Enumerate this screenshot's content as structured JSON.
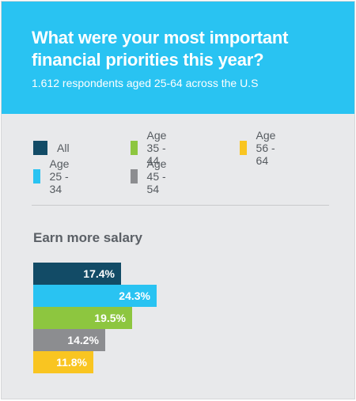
{
  "header": {
    "title": "What were your most important financial priorities this year?",
    "subtitle": "1.612 respondents aged 25-64 across the U.S"
  },
  "legend": [
    {
      "label": "All",
      "color": "#124b66"
    },
    {
      "label": "Age 25 - 34",
      "color": "#29c3f2"
    },
    {
      "label": "Age 35 - 44",
      "color": "#8dc63f"
    },
    {
      "label": "Age 45 - 54",
      "color": "#8c8d90"
    },
    {
      "label": "Age 56 - 64",
      "color": "#f9c521"
    }
  ],
  "chart_data": {
    "type": "bar",
    "orientation": "horizontal",
    "title": "Earn more salary",
    "categories": [
      "All",
      "Age 25 - 34",
      "Age 35 - 44",
      "Age 45 - 54",
      "Age 56 - 64"
    ],
    "values": [
      17.4,
      24.3,
      19.5,
      14.2,
      11.8
    ],
    "value_labels": [
      "17.4%",
      "24.3%",
      "19.5%",
      "14.2%",
      "11.8%"
    ],
    "colors": [
      "#124b66",
      "#29c3f2",
      "#8dc63f",
      "#8c8d90",
      "#f9c521"
    ],
    "xlabel": "",
    "ylabel": "",
    "grid": false,
    "legend_position": "top"
  }
}
